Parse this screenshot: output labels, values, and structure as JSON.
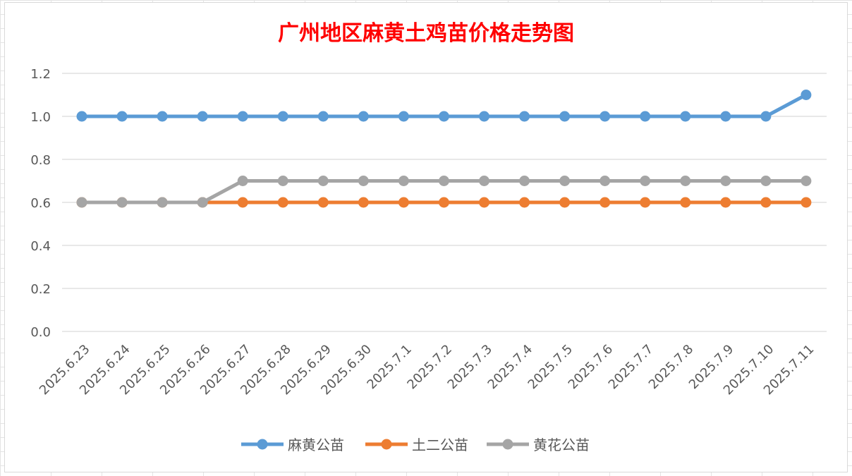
{
  "chart_data": {
    "type": "line",
    "title": "广州地区麻黄土鸡苗价格走势图",
    "title_color": "#ff0000",
    "xlabel": "",
    "ylabel": "",
    "ylim": [
      0,
      1.2
    ],
    "y_ticks": [
      "0.0",
      "0.2",
      "0.4",
      "0.6",
      "0.8",
      "1.0",
      "1.2"
    ],
    "grid": true,
    "legend_position": "bottom",
    "categories": [
      "2025.6.23",
      "2025.6.24",
      "2025.6.25",
      "2025.6.26",
      "2025.6.27",
      "2025.6.28",
      "2025.6.29",
      "2025.6.30",
      "2025.7.1",
      "2025.7.2",
      "2025.7.3",
      "2025.7.4",
      "2025.7.5",
      "2025.7.6",
      "2025.7.7",
      "2025.7.8",
      "2025.7.9",
      "2025.7.10",
      "2025.7.11"
    ],
    "series": [
      {
        "name": "麻黄公苗",
        "color": "#5b9bd5",
        "values": [
          1.0,
          1.0,
          1.0,
          1.0,
          1.0,
          1.0,
          1.0,
          1.0,
          1.0,
          1.0,
          1.0,
          1.0,
          1.0,
          1.0,
          1.0,
          1.0,
          1.0,
          1.0,
          1.1
        ]
      },
      {
        "name": "土二公苗",
        "color": "#ed7d31",
        "values": [
          0.6,
          0.6,
          0.6,
          0.6,
          0.6,
          0.6,
          0.6,
          0.6,
          0.6,
          0.6,
          0.6,
          0.6,
          0.6,
          0.6,
          0.6,
          0.6,
          0.6,
          0.6,
          0.6
        ]
      },
      {
        "name": "黄花公苗",
        "color": "#a5a5a5",
        "values": [
          0.6,
          0.6,
          0.6,
          0.6,
          0.7,
          0.7,
          0.7,
          0.7,
          0.7,
          0.7,
          0.7,
          0.7,
          0.7,
          0.7,
          0.7,
          0.7,
          0.7,
          0.7,
          0.7
        ]
      }
    ]
  }
}
